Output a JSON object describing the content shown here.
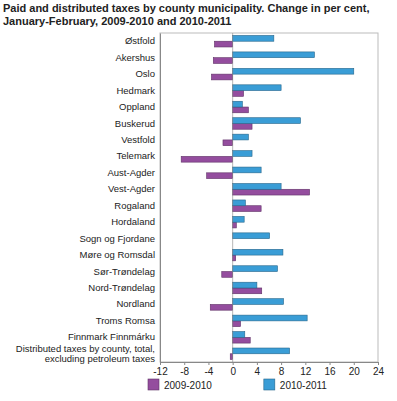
{
  "chart_data": {
    "type": "bar",
    "orientation": "horizontal",
    "title": "Paid and distributed taxes by county municipality. Change in per cent, January-February, 2009-2010 and 2010-2011",
    "categories": [
      "Østfold",
      "Akershus",
      "Oslo",
      "Hedmark",
      "Oppland",
      "Buskerud",
      "Vestfold",
      "Telemark",
      "Aust-Agder",
      "Vest-Agder",
      "Rogaland",
      "Hordaland",
      "Sogn og Fjordane",
      "Møre og Romsdal",
      "Sør-Trøndelag",
      "Nord-Trøndelag",
      "Nordland",
      "Troms Romsa",
      "Finnmark Finnmárku",
      "Distributed taxes by county, total, excluding petroleum taxes"
    ],
    "series": [
      {
        "name": "2009-2010",
        "color": "#944d9e",
        "values": [
          -3.0,
          -3.2,
          -3.5,
          1.8,
          2.6,
          3.2,
          -1.6,
          -8.5,
          -4.3,
          12.7,
          4.7,
          0.6,
          0.0,
          0.5,
          -1.8,
          4.8,
          -3.7,
          1.3,
          2.9,
          -0.4
        ]
      },
      {
        "name": "2010-2011",
        "color": "#3a9dd6",
        "values": [
          6.8,
          13.5,
          20.0,
          8.0,
          1.6,
          11.2,
          2.6,
          3.2,
          4.7,
          8.0,
          2.1,
          1.9,
          6.1,
          8.3,
          7.4,
          4.0,
          8.4,
          12.3,
          2.0,
          9.4
        ]
      }
    ],
    "xlim": [
      -12,
      24
    ],
    "xticks": [
      -12,
      -8,
      -4,
      0,
      4,
      8,
      12,
      16,
      20,
      24
    ],
    "grid": false,
    "legend": "bottom"
  }
}
